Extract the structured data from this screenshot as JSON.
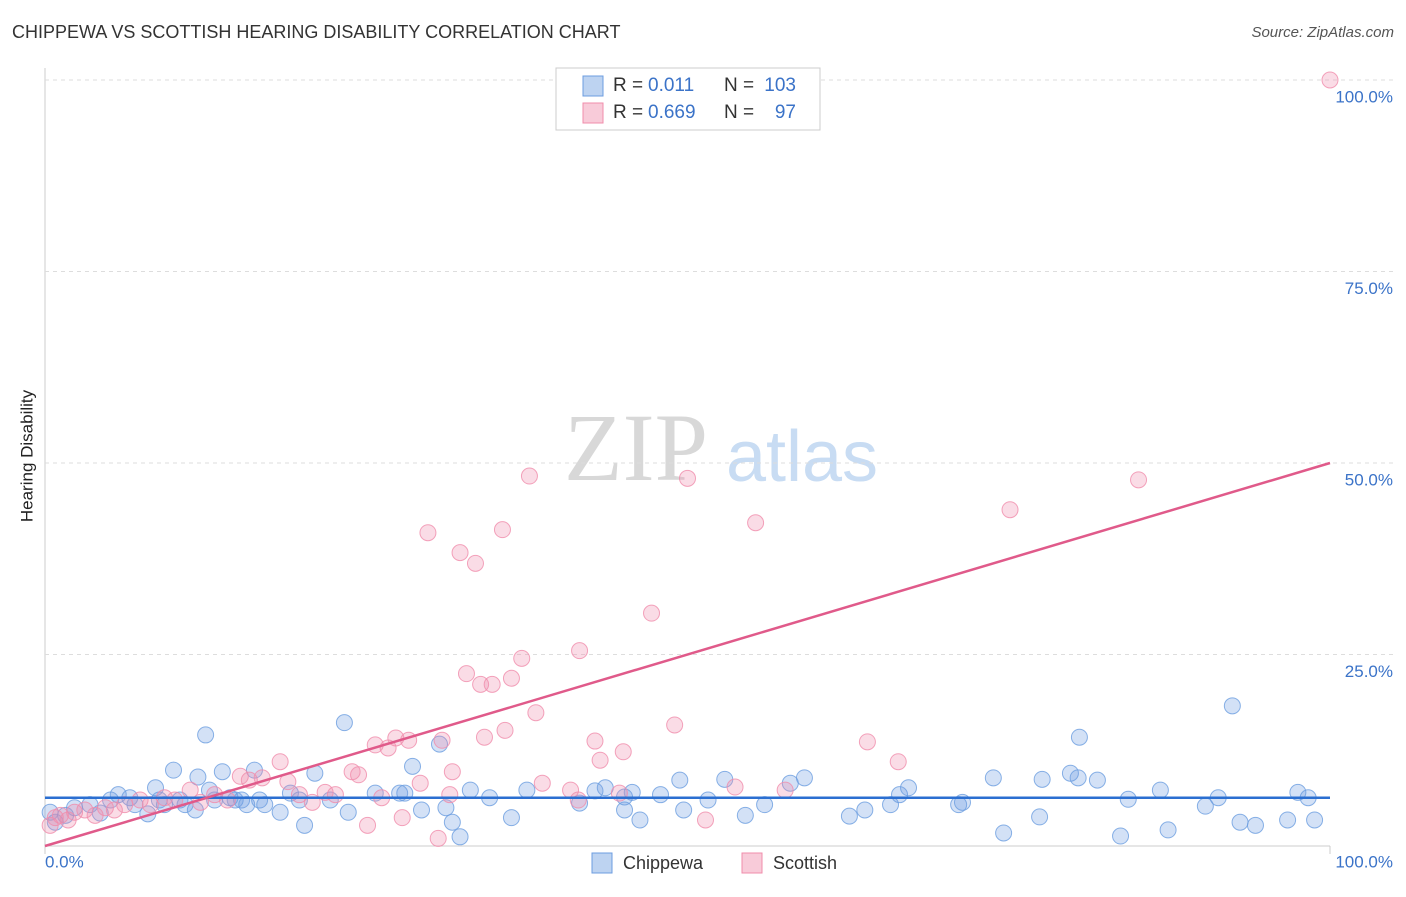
{
  "chart_data": {
    "type": "scatter",
    "title": "CHIPPEWA VS SCOTTISH HEARING DISABILITY CORRELATION CHART",
    "source": "Source: ZipAtlas.com",
    "y_label": "Hearing Disability",
    "watermark": [
      "ZIP",
      "atlas"
    ],
    "stat_labels": {
      "r": "R =",
      "n": "N ="
    },
    "xlim": [
      0,
      100
    ],
    "ylim": [
      0,
      100
    ],
    "xticks": [
      {
        "value": 0,
        "label": "0.0%"
      },
      {
        "value": 100,
        "label": "100.0%"
      }
    ],
    "yticks": [
      {
        "value": 25,
        "label": "25.0%"
      },
      {
        "value": 50,
        "label": "50.0%"
      },
      {
        "value": 75,
        "label": "75.0%"
      },
      {
        "value": 100,
        "label": "100.0%"
      }
    ],
    "grid": true,
    "series": [
      {
        "name": "Chippewa",
        "color": "#6c9de0",
        "line_color": "#2b6fd1",
        "r": 0.011,
        "n": 103,
        "trend_y": [
          6.3,
          6.3
        ],
        "x": [
          0.4,
          0.8,
          1.6,
          2.3,
          3.5,
          4.3,
          5.1,
          5.7,
          6.6,
          7.0,
          8.0,
          8.6,
          8.9,
          9.3,
          10.0,
          10.5,
          10.9,
          11.7,
          11.9,
          12.5,
          12.8,
          13.2,
          13.8,
          14.4,
          14.8,
          15.3,
          15.7,
          16.3,
          16.7,
          17.1,
          18.3,
          19.1,
          19.8,
          20.2,
          21.0,
          22.2,
          23.3,
          23.6,
          25.7,
          27.6,
          28.0,
          28.6,
          29.3,
          30.7,
          31.2,
          31.7,
          32.3,
          33.1,
          34.6,
          36.3,
          37.5,
          41.6,
          42.8,
          43.6,
          45.1,
          45.1,
          45.7,
          46.3,
          47.9,
          49.7,
          49.4,
          51.6,
          52.9,
          54.5,
          56.0,
          58.0,
          59.1,
          62.6,
          63.8,
          65.8,
          66.5,
          67.2,
          71.1,
          71.4,
          73.8,
          74.6,
          77.6,
          77.4,
          79.8,
          80.4,
          80.5,
          81.9,
          84.3,
          83.7,
          86.8,
          87.4,
          90.3,
          91.3,
          92.4,
          93.0,
          94.2,
          96.7,
          97.5,
          98.3,
          98.8
        ],
        "y": [
          4.4,
          3.1,
          4.0,
          5.0,
          5.4,
          4.3,
          6.0,
          6.7,
          6.3,
          5.4,
          4.2,
          7.6,
          6.0,
          5.4,
          9.9,
          6.0,
          5.4,
          4.7,
          9.0,
          14.5,
          7.3,
          6.0,
          9.7,
          6.3,
          6.0,
          6.0,
          5.4,
          9.9,
          6.0,
          5.4,
          4.4,
          6.9,
          6.0,
          2.7,
          9.5,
          6.0,
          16.1,
          4.4,
          6.9,
          6.9,
          6.9,
          10.4,
          4.7,
          13.3,
          5.0,
          3.1,
          1.2,
          7.3,
          6.3,
          3.7,
          7.3,
          5.6,
          7.2,
          7.6,
          4.7,
          6.4,
          7.0,
          3.4,
          6.7,
          4.7,
          8.6,
          6.0,
          8.7,
          4.0,
          5.4,
          8.2,
          8.9,
          3.9,
          4.7,
          5.4,
          6.7,
          7.6,
          5.4,
          5.7,
          8.9,
          1.7,
          8.7,
          3.8,
          9.5,
          8.9,
          14.2,
          8.6,
          6.1,
          1.3,
          7.3,
          2.1,
          5.2,
          6.3,
          18.3,
          3.1,
          2.7,
          3.4,
          7.0,
          6.3,
          3.4
        ]
      },
      {
        "name": "Scottish",
        "color": "#f08cab",
        "line_color": "#e05a8a",
        "r": 0.669,
        "n": 97,
        "trend_y": [
          0,
          50
        ],
        "x": [
          0.4,
          0.8,
          1.2,
          1.8,
          2.3,
          3.1,
          3.9,
          4.7,
          5.4,
          6.2,
          7.4,
          8.2,
          9.3,
          10.1,
          11.3,
          12.1,
          13.2,
          14.2,
          15.2,
          15.9,
          16.9,
          18.3,
          18.9,
          19.8,
          20.8,
          21.8,
          22.6,
          23.9,
          24.4,
          25.1,
          25.7,
          26.2,
          26.7,
          27.3,
          27.8,
          28.3,
          29.2,
          29.8,
          30.6,
          30.9,
          31.5,
          31.7,
          32.3,
          32.8,
          33.5,
          33.9,
          34.2,
          34.8,
          35.6,
          35.8,
          36.3,
          37.1,
          37.7,
          38.2,
          38.7,
          40.9,
          41.5,
          41.6,
          42.8,
          43.2,
          44.7,
          45.0,
          47.2,
          49.0,
          50.0,
          51.4,
          53.7,
          55.3,
          57.6,
          64.0,
          66.4,
          75.1,
          85.1,
          100.0
        ],
        "y": [
          2.7,
          3.7,
          4.0,
          3.4,
          4.4,
          4.7,
          4.0,
          5.0,
          4.7,
          5.4,
          6.0,
          5.4,
          6.3,
          6.0,
          7.3,
          5.7,
          6.7,
          6.0,
          9.1,
          8.6,
          8.9,
          11.0,
          8.4,
          6.7,
          5.7,
          7.0,
          6.7,
          9.7,
          9.3,
          2.7,
          13.2,
          6.3,
          12.8,
          14.1,
          3.7,
          13.8,
          8.2,
          40.9,
          1.0,
          13.8,
          6.7,
          9.7,
          38.3,
          22.5,
          36.9,
          21.1,
          14.2,
          21.1,
          41.3,
          15.1,
          21.9,
          24.5,
          48.3,
          17.4,
          8.2,
          7.3,
          6.0,
          25.5,
          13.7,
          11.2,
          6.9,
          12.3,
          30.4,
          15.8,
          48.0,
          3.4,
          7.7,
          42.2,
          7.3,
          13.6,
          11.0,
          43.9,
          47.8,
          100.0
        ]
      }
    ]
  }
}
